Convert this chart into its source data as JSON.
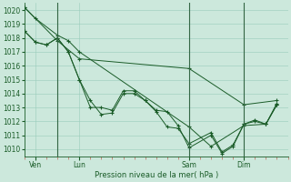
{
  "xlabel": "Pression niveau de la mer( hPa )",
  "background_color": "#cce8dc",
  "grid_color": "#99ccbb",
  "line_color": "#1a5c28",
  "vline_color": "#336644",
  "ylim": [
    1009.5,
    1020.5
  ],
  "xlim": [
    0,
    288
  ],
  "day_labels": [
    "Ven",
    "Lun",
    "Sam",
    "Dim"
  ],
  "day_positions": [
    12,
    60,
    180,
    240
  ],
  "vline_positions": [
    36,
    180,
    240
  ],
  "total_hours": 288,
  "series": [
    [
      0,
      1020.2,
      12,
      1019.4,
      36,
      1018.2,
      48,
      1017.8,
      60,
      1017.0,
      180,
      1011.6,
      204,
      1010.2,
      240,
      1011.7,
      264,
      1011.8,
      276,
      1013.3
    ],
    [
      0,
      1018.5,
      12,
      1017.7,
      24,
      1017.5,
      36,
      1018.0,
      48,
      1017.0,
      60,
      1015.0,
      72,
      1013.5,
      84,
      1012.5,
      96,
      1012.6,
      108,
      1014.0,
      120,
      1014.0,
      132,
      1013.5,
      144,
      1012.7,
      156,
      1011.6,
      168,
      1011.5,
      180,
      1010.4,
      204,
      1011.2,
      216,
      1009.8,
      228,
      1010.3,
      240,
      1011.8,
      252,
      1012.0,
      264,
      1011.8,
      276,
      1013.2
    ],
    [
      0,
      1018.5,
      12,
      1017.7,
      24,
      1017.5,
      36,
      1018.0,
      48,
      1017.0,
      60,
      1015.0,
      72,
      1013.0,
      84,
      1013.0,
      96,
      1012.8,
      108,
      1014.2,
      120,
      1014.2,
      132,
      1013.5,
      144,
      1012.8,
      156,
      1012.7,
      168,
      1011.7,
      180,
      1010.1,
      204,
      1011.0,
      216,
      1009.7,
      228,
      1010.2,
      240,
      1011.8,
      252,
      1012.1,
      264,
      1011.8,
      276,
      1013.2
    ],
    [
      0,
      1020.2,
      36,
      1017.8,
      60,
      1016.5,
      180,
      1015.8,
      240,
      1013.2,
      276,
      1013.5
    ]
  ]
}
